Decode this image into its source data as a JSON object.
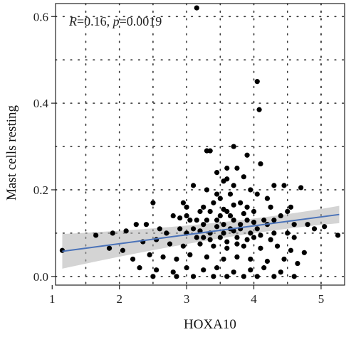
{
  "chart_data": {
    "type": "scatter",
    "title": "",
    "xlabel": "HOXA10",
    "ylabel": "Mast cells resting",
    "xlim": [
      1.05,
      5.35
    ],
    "ylim": [
      -0.02,
      0.63
    ],
    "xticks": [
      1,
      2,
      3,
      4,
      5
    ],
    "yticks": [
      0.0,
      0.2,
      0.4,
      0.6
    ],
    "xtick_labels": [
      "1",
      "2",
      "3",
      "4",
      "5"
    ],
    "ytick_labels": [
      "0.0",
      "0.2",
      "0.4",
      "0.6"
    ],
    "grid": true,
    "annotation": {
      "r_label": "R",
      "r_value": "=0.16, ",
      "p_label": "p",
      "p_value": "=0.0019"
    },
    "regression": {
      "x": [
        1.15,
        5.27
      ],
      "y": [
        0.058,
        0.143
      ],
      "ci_upper": [
        0.098,
        0.163
      ],
      "ci_lower": [
        0.018,
        0.123
      ],
      "ci_mid_x": 3.6,
      "ci_mid_half_width": 0.008,
      "color": "#4a72b8",
      "band_color": "#b0b0b0"
    },
    "point_color": "#000000",
    "points": [
      [
        3.15,
        0.62
      ],
      [
        4.05,
        0.45
      ],
      [
        4.08,
        0.385
      ],
      [
        3.3,
        0.29
      ],
      [
        3.35,
        0.29
      ],
      [
        3.7,
        0.3
      ],
      [
        3.9,
        0.28
      ],
      [
        4.1,
        0.26
      ],
      [
        3.6,
        0.25
      ],
      [
        3.45,
        0.24
      ],
      [
        3.75,
        0.25
      ],
      [
        3.55,
        0.22
      ],
      [
        3.85,
        0.23
      ],
      [
        4.3,
        0.21
      ],
      [
        4.7,
        0.205
      ],
      [
        4.45,
        0.21
      ],
      [
        3.1,
        0.21
      ],
      [
        3.3,
        0.2
      ],
      [
        3.95,
        0.2
      ],
      [
        3.65,
        0.19
      ],
      [
        3.5,
        0.18
      ],
      [
        4.2,
        0.18
      ],
      [
        2.5,
        0.17
      ],
      [
        2.95,
        0.17
      ],
      [
        3.8,
        0.17
      ],
      [
        4.55,
        0.16
      ],
      [
        3.0,
        0.16
      ],
      [
        3.2,
        0.15
      ],
      [
        3.35,
        0.15
      ],
      [
        3.6,
        0.15
      ],
      [
        4.0,
        0.15
      ],
      [
        4.4,
        0.14
      ],
      [
        2.8,
        0.14
      ],
      [
        2.9,
        0.135
      ],
      [
        3.45,
        0.13
      ],
      [
        3.7,
        0.13
      ],
      [
        3.9,
        0.13
      ],
      [
        4.15,
        0.13
      ],
      [
        4.6,
        0.12
      ],
      [
        4.8,
        0.12
      ],
      [
        4.9,
        0.11
      ],
      [
        5.05,
        0.115
      ],
      [
        3.25,
        0.12
      ],
      [
        3.55,
        0.12
      ],
      [
        3.1,
        0.11
      ],
      [
        3.35,
        0.1
      ],
      [
        3.8,
        0.11
      ],
      [
        4.05,
        0.11
      ],
      [
        4.3,
        0.1
      ],
      [
        4.5,
        0.1
      ],
      [
        2.6,
        0.11
      ],
      [
        2.7,
        0.1
      ],
      [
        3.0,
        0.1
      ],
      [
        3.25,
        0.09
      ],
      [
        3.5,
        0.09
      ],
      [
        3.75,
        0.09
      ],
      [
        4.0,
        0.09
      ],
      [
        4.25,
        0.085
      ],
      [
        4.6,
        0.09
      ],
      [
        2.4,
        0.12
      ],
      [
        2.25,
        0.12
      ],
      [
        2.1,
        0.105
      ],
      [
        1.9,
        0.1
      ],
      [
        1.65,
        0.095
      ],
      [
        1.15,
        0.06
      ],
      [
        1.85,
        0.065
      ],
      [
        2.05,
        0.06
      ],
      [
        2.35,
        0.08
      ],
      [
        2.55,
        0.085
      ],
      [
        2.75,
        0.075
      ],
      [
        2.95,
        0.07
      ],
      [
        3.2,
        0.075
      ],
      [
        3.4,
        0.07
      ],
      [
        3.6,
        0.065
      ],
      [
        3.85,
        0.07
      ],
      [
        4.1,
        0.065
      ],
      [
        4.35,
        0.07
      ],
      [
        4.55,
        0.06
      ],
      [
        4.75,
        0.055
      ],
      [
        5.25,
        0.095
      ],
      [
        2.2,
        0.04
      ],
      [
        2.45,
        0.05
      ],
      [
        2.65,
        0.045
      ],
      [
        2.85,
        0.04
      ],
      [
        3.05,
        0.05
      ],
      [
        3.3,
        0.045
      ],
      [
        3.55,
        0.04
      ],
      [
        3.75,
        0.045
      ],
      [
        3.95,
        0.04
      ],
      [
        4.2,
        0.035
      ],
      [
        4.45,
        0.04
      ],
      [
        4.65,
        0.03
      ],
      [
        2.3,
        0.02
      ],
      [
        2.55,
        0.015
      ],
      [
        2.8,
        0.01
      ],
      [
        3.0,
        0.02
      ],
      [
        3.25,
        0.015
      ],
      [
        3.45,
        0.02
      ],
      [
        3.7,
        0.01
      ],
      [
        3.95,
        0.015
      ],
      [
        4.15,
        0.02
      ],
      [
        4.4,
        0.01
      ],
      [
        2.5,
        0.0
      ],
      [
        2.85,
        0.0
      ],
      [
        3.1,
        0.0
      ],
      [
        3.4,
        0.0
      ],
      [
        3.6,
        0.0
      ],
      [
        3.85,
        0.0
      ],
      [
        4.05,
        0.0
      ],
      [
        4.3,
        0.0
      ],
      [
        4.6,
        0.0
      ],
      [
        3.15,
        0.13
      ],
      [
        3.65,
        0.14
      ],
      [
        3.9,
        0.16
      ],
      [
        3.4,
        0.17
      ],
      [
        3.55,
        0.1
      ],
      [
        3.65,
        0.11
      ],
      [
        3.8,
        0.12
      ],
      [
        3.95,
        0.1
      ],
      [
        4.2,
        0.12
      ],
      [
        3.3,
        0.13
      ],
      [
        3.5,
        0.14
      ],
      [
        3.2,
        0.105
      ],
      [
        3.45,
        0.115
      ],
      [
        3.7,
        0.105
      ],
      [
        4.0,
        0.125
      ],
      [
        3.05,
        0.13
      ],
      [
        2.9,
        0.11
      ],
      [
        3.6,
        0.08
      ],
      [
        3.75,
        0.075
      ],
      [
        3.9,
        0.085
      ],
      [
        3.35,
        0.085
      ],
      [
        3.15,
        0.09
      ],
      [
        4.1,
        0.095
      ],
      [
        4.3,
        0.13
      ],
      [
        4.5,
        0.15
      ],
      [
        3.55,
        0.155
      ],
      [
        3.7,
        0.165
      ],
      [
        3.85,
        0.145
      ],
      [
        3.25,
        0.16
      ],
      [
        3.45,
        0.19
      ],
      [
        3.7,
        0.21
      ],
      [
        3.6,
        0.225
      ],
      [
        4.05,
        0.19
      ],
      [
        4.25,
        0.16
      ],
      [
        3.0,
        0.14
      ]
    ]
  }
}
